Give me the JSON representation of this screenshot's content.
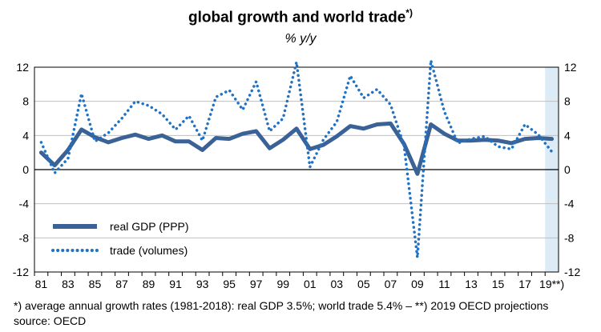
{
  "chart_data": {
    "type": "line",
    "title": "global growth and world trade",
    "title_superscript": "*)",
    "subtitle": "% y/y",
    "x": [
      1981,
      1982,
      1983,
      1984,
      1985,
      1986,
      1987,
      1988,
      1989,
      1990,
      1991,
      1992,
      1993,
      1994,
      1995,
      1996,
      1997,
      1998,
      1999,
      2000,
      2001,
      2002,
      2003,
      2004,
      2005,
      2006,
      2007,
      2008,
      2009,
      2010,
      2011,
      2012,
      2013,
      2014,
      2015,
      2016,
      2017,
      2018,
      2019
    ],
    "x_tick_labels": [
      "81",
      "83",
      "85",
      "87",
      "89",
      "91",
      "93",
      "95",
      "97",
      "99",
      "01",
      "03",
      "05",
      "07",
      "09",
      "11",
      "13",
      "15",
      "17",
      "19**)"
    ],
    "x_tick_years": [
      1981,
      1983,
      1985,
      1987,
      1989,
      1991,
      1993,
      1995,
      1997,
      1999,
      2001,
      2003,
      2005,
      2007,
      2009,
      2011,
      2013,
      2015,
      2017,
      2019
    ],
    "ylim": [
      -12,
      12
    ],
    "y_ticks": [
      -12,
      -8,
      -4,
      0,
      4,
      8,
      12
    ],
    "y_tick_labels": [
      "-12",
      "-8",
      "-4",
      "0",
      "4",
      "8",
      "12"
    ],
    "projection_from_year": 2019,
    "projection_shade_color": "#dcebf5",
    "series": [
      {
        "name": "real GDP (PPP)",
        "style": "solid",
        "color": "#3a6296",
        "values": [
          2.0,
          0.5,
          2.3,
          4.7,
          3.8,
          3.2,
          3.7,
          4.1,
          3.6,
          4.0,
          3.3,
          3.3,
          2.3,
          3.7,
          3.6,
          4.2,
          4.5,
          2.5,
          3.5,
          4.8,
          2.4,
          2.9,
          3.9,
          5.1,
          4.8,
          5.3,
          5.4,
          3.0,
          -0.5,
          5.3,
          4.2,
          3.4,
          3.4,
          3.5,
          3.4,
          3.1,
          3.6,
          3.7,
          3.6
        ]
      },
      {
        "name": "trade (volumes)",
        "style": "dotted",
        "color": "#1f72c4",
        "values": [
          3.2,
          -0.4,
          1.3,
          8.9,
          3.3,
          4.3,
          6.0,
          8.0,
          7.5,
          6.5,
          4.7,
          6.3,
          3.4,
          8.5,
          9.3,
          7.0,
          10.3,
          4.5,
          6.0,
          12.6,
          0.3,
          3.5,
          5.6,
          11.0,
          8.4,
          9.4,
          7.6,
          2.8,
          -10.3,
          12.8,
          6.8,
          3.1,
          3.6,
          3.9,
          2.7,
          2.4,
          5.3,
          4.1,
          2.1
        ]
      }
    ],
    "legend_position": "lower-left",
    "footnote": "*)  average annual growth rates (1981-2018): real GDP 3.5%; world trade 5.4%  –  **) 2019  OECD projections",
    "source": "source: OECD"
  }
}
